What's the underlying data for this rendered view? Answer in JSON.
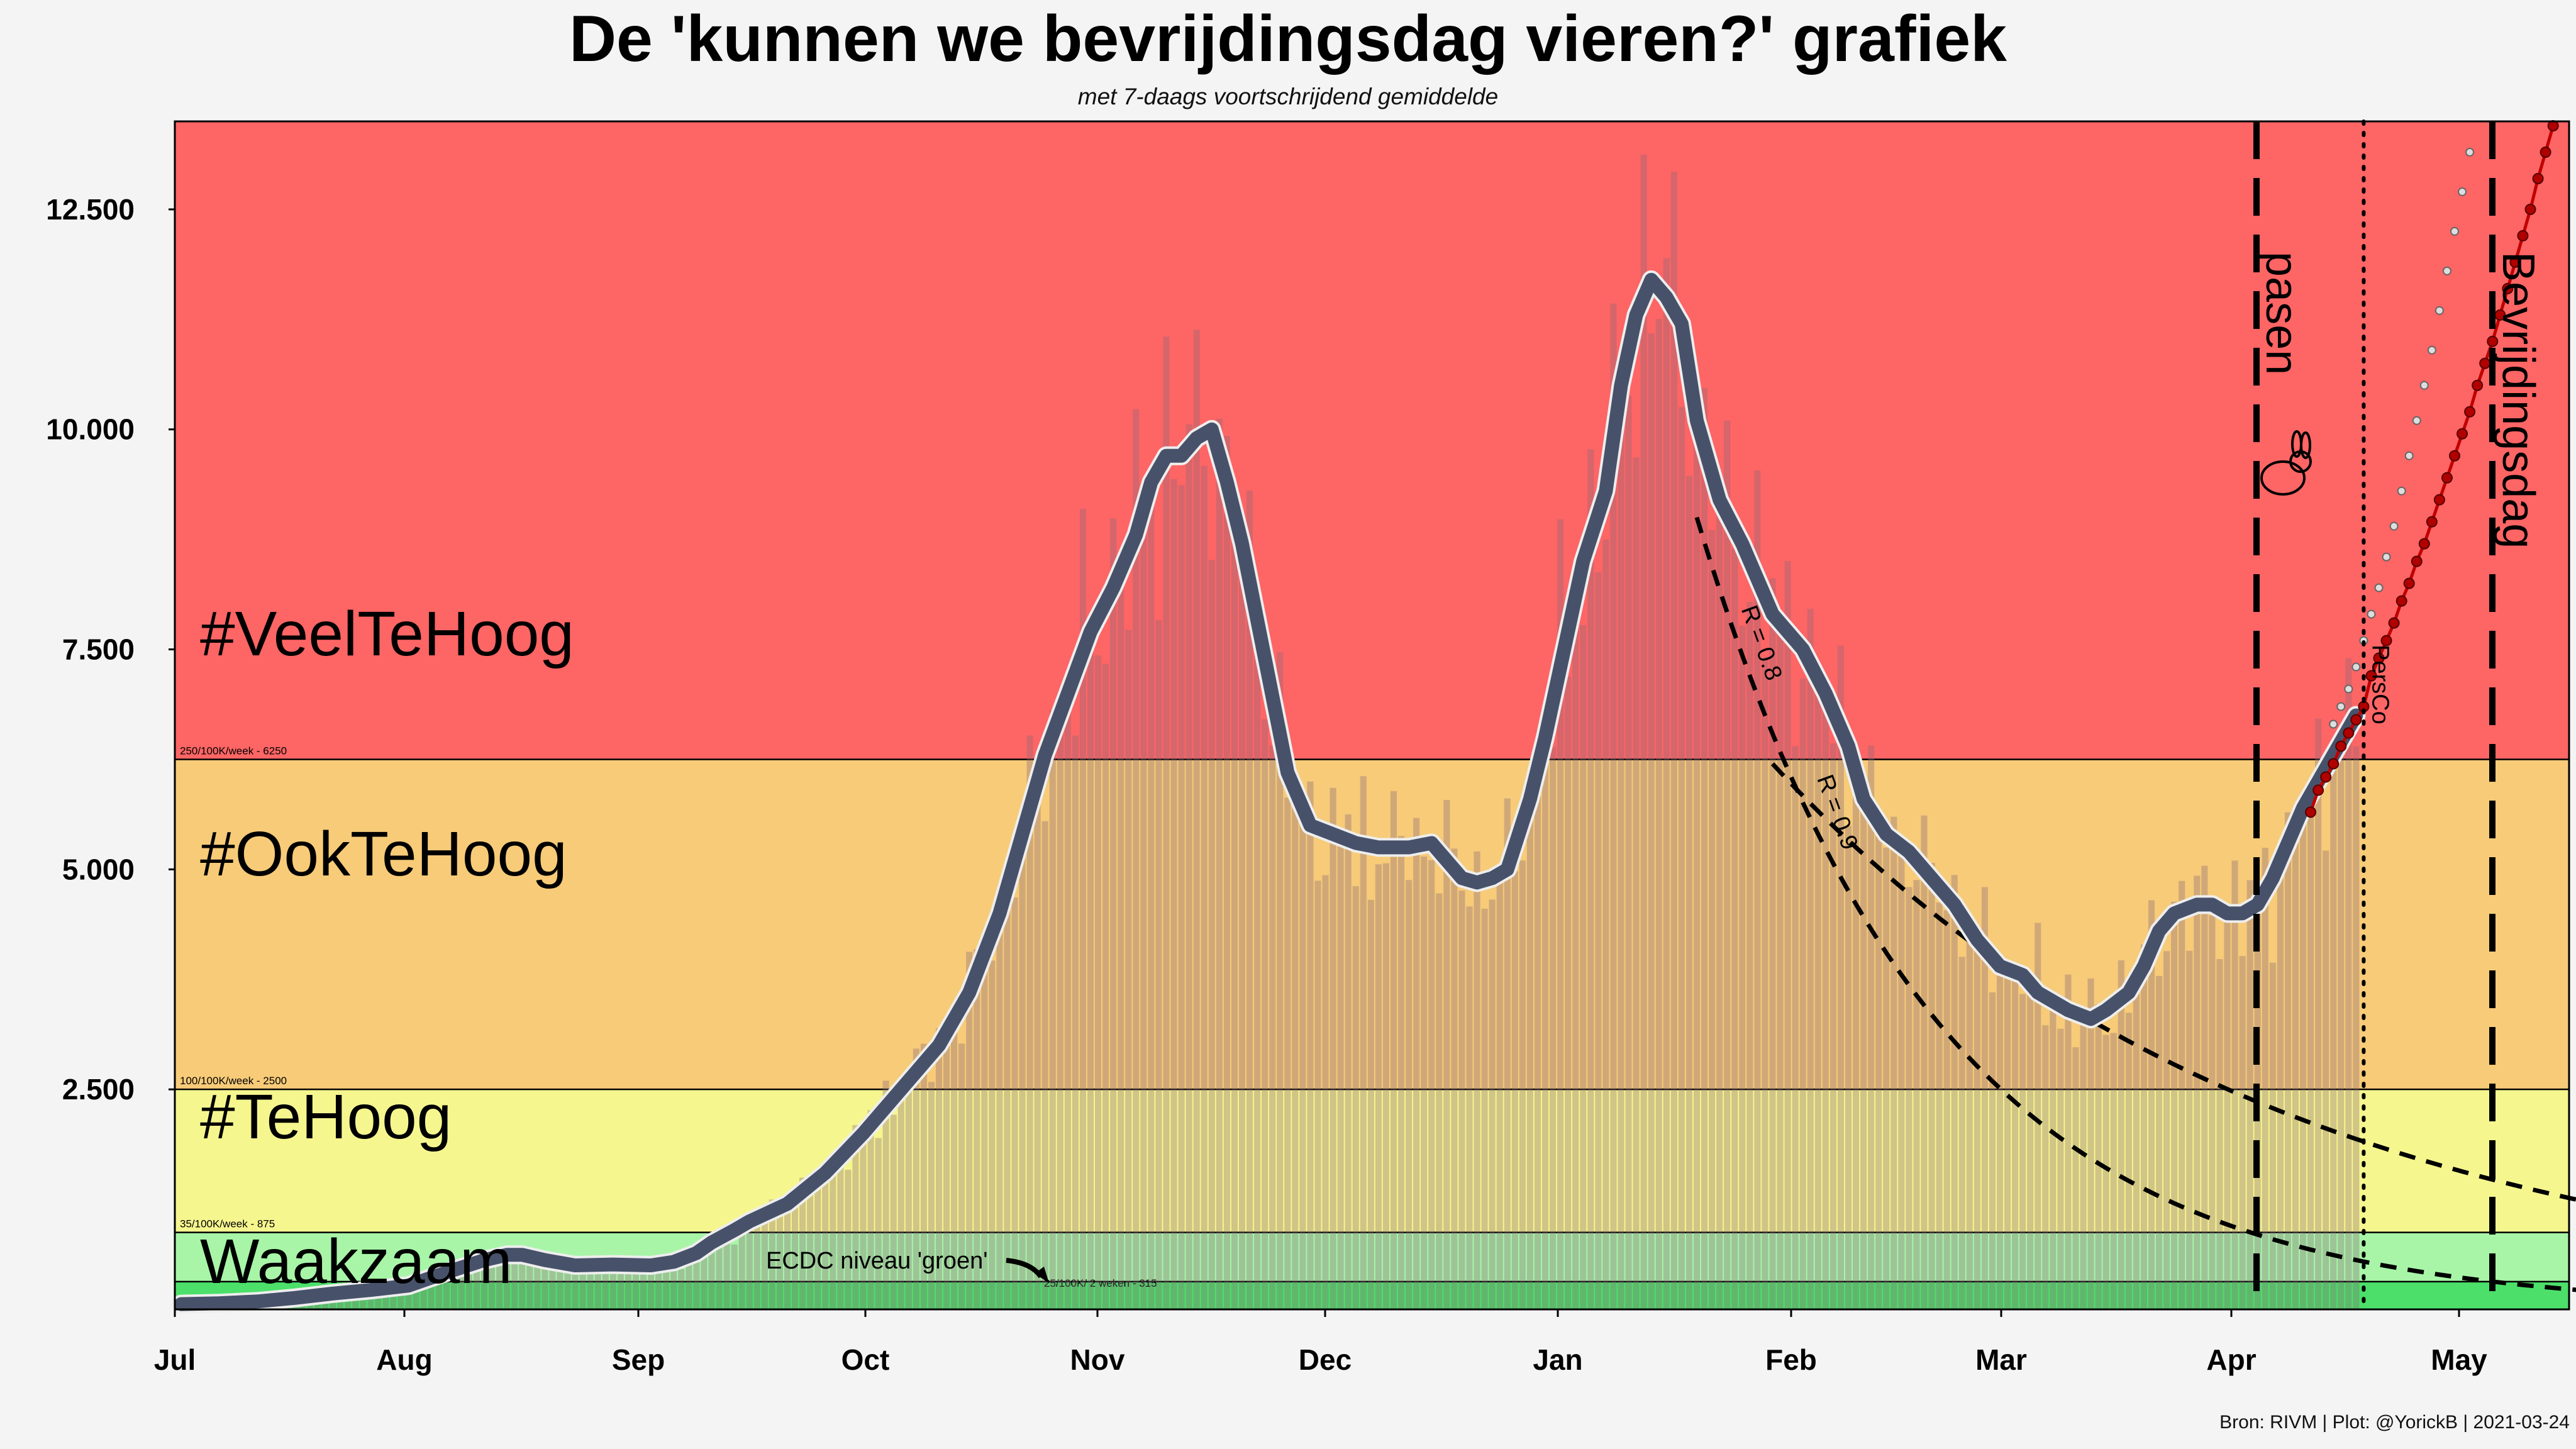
{
  "title": "De 'kunnen we bevrijdingsdag vieren?' grafiek",
  "subtitle": "met 7-daags voortschrijdend gemiddelde",
  "source": "Bron: RIVM | Plot: @YorickB  |  2021-03-24",
  "chart_data": {
    "type": "bar",
    "ylim": [
      0,
      13500
    ],
    "y_ticks": [
      {
        "value": 2500,
        "label": "2.500"
      },
      {
        "value": 5000,
        "label": "5.000"
      },
      {
        "value": 7500,
        "label": "7.500"
      },
      {
        "value": 10000,
        "label": "10.000"
      },
      {
        "value": 12500,
        "label": "12.500"
      }
    ],
    "x_ticks": [
      {
        "day": 0,
        "label": "Jul"
      },
      {
        "day": 31,
        "label": "Aug"
      },
      {
        "day": 62,
        "label": "Sep"
      },
      {
        "day": 92,
        "label": "Oct"
      },
      {
        "day": 123,
        "label": "Nov"
      },
      {
        "day": 153,
        "label": "Dec"
      },
      {
        "day": 184,
        "label": "Jan"
      },
      {
        "day": 215,
        "label": "Feb"
      },
      {
        "day": 243,
        "label": "Mar"
      },
      {
        "day": 274,
        "label": "Apr"
      },
      {
        "day": 304,
        "label": "May"
      }
    ],
    "x_range_days": [
      0,
      318
    ],
    "zones": [
      {
        "from": 0,
        "to": 315,
        "color": "#4ce06a",
        "label": "",
        "threshold_label": "25/100K/ 2 weken - 315"
      },
      {
        "from": 315,
        "to": 875,
        "color": "#a8f5a8",
        "label": "Waakzaam",
        "threshold_label": "35/100K/week - 875"
      },
      {
        "from": 875,
        "to": 2500,
        "color": "#f6f68f",
        "label": "#TeHoog",
        "threshold_label": "100/100K/week - 2500"
      },
      {
        "from": 2500,
        "to": 6250,
        "color": "#f7cb78",
        "label": "#OokTeHoog",
        "threshold_label": "250/100K/week - 6250"
      },
      {
        "from": 6250,
        "to": 13500,
        "color": "#fe6565",
        "label": "#VeelTeHoog",
        "threshold_label": ""
      }
    ],
    "avg_keypoints": [
      [
        0,
        60
      ],
      [
        5,
        70
      ],
      [
        10,
        90
      ],
      [
        15,
        130
      ],
      [
        20,
        180
      ],
      [
        25,
        220
      ],
      [
        30,
        270
      ],
      [
        35,
        420
      ],
      [
        40,
        560
      ],
      [
        43,
        620
      ],
      [
        45,
        620
      ],
      [
        48,
        560
      ],
      [
        52,
        500
      ],
      [
        57,
        510
      ],
      [
        62,
        500
      ],
      [
        65,
        540
      ],
      [
        68,
        640
      ],
      [
        70,
        760
      ],
      [
        73,
        900
      ],
      [
        75,
        1000
      ],
      [
        80,
        1200
      ],
      [
        85,
        1550
      ],
      [
        90,
        2000
      ],
      [
        95,
        2500
      ],
      [
        100,
        3000
      ],
      [
        104,
        3600
      ],
      [
        108,
        4500
      ],
      [
        111,
        5400
      ],
      [
        114,
        6300
      ],
      [
        117,
        7000
      ],
      [
        120,
        7700
      ],
      [
        123,
        8200
      ],
      [
        126,
        8800
      ],
      [
        128,
        9400
      ],
      [
        130,
        9700
      ],
      [
        132,
        9700
      ],
      [
        134,
        9900
      ],
      [
        136,
        10000
      ],
      [
        138,
        9400
      ],
      [
        140,
        8700
      ],
      [
        143,
        7400
      ],
      [
        146,
        6100
      ],
      [
        149,
        5500
      ],
      [
        152,
        5400
      ],
      [
        155,
        5300
      ],
      [
        158,
        5250
      ],
      [
        162,
        5250
      ],
      [
        165,
        5300
      ],
      [
        167,
        5100
      ],
      [
        169,
        4900
      ],
      [
        171,
        4850
      ],
      [
        173,
        4900
      ],
      [
        175,
        5000
      ],
      [
        178,
        5800
      ],
      [
        180,
        6500
      ],
      [
        183,
        7700
      ],
      [
        185,
        8500
      ],
      [
        188,
        9300
      ],
      [
        190,
        10500
      ],
      [
        192,
        11300
      ],
      [
        194,
        11700
      ],
      [
        196,
        11500
      ],
      [
        198,
        11200
      ],
      [
        200,
        10100
      ],
      [
        203,
        9200
      ],
      [
        206,
        8700
      ],
      [
        208,
        8300
      ],
      [
        210,
        7900
      ],
      [
        212,
        7700
      ],
      [
        214,
        7500
      ],
      [
        217,
        7000
      ],
      [
        220,
        6400
      ],
      [
        222,
        5800
      ],
      [
        225,
        5400
      ],
      [
        228,
        5200
      ],
      [
        231,
        4900
      ],
      [
        234,
        4600
      ],
      [
        237,
        4200
      ],
      [
        240,
        3900
      ],
      [
        243,
        3800
      ],
      [
        245,
        3600
      ],
      [
        247,
        3500
      ],
      [
        249,
        3400
      ],
      [
        252,
        3300
      ],
      [
        254,
        3400
      ],
      [
        257,
        3600
      ],
      [
        259,
        3900
      ],
      [
        261,
        4300
      ],
      [
        263,
        4500
      ],
      [
        266,
        4600
      ],
      [
        268,
        4600
      ],
      [
        270,
        4500
      ],
      [
        272,
        4500
      ],
      [
        274,
        4600
      ],
      [
        276,
        4900
      ],
      [
        278,
        5300
      ],
      [
        280,
        5700
      ],
      [
        282,
        6000
      ],
      [
        284,
        6300
      ],
      [
        286,
        6600
      ],
      [
        287,
        6750
      ]
    ],
    "daily_bar_count": 288,
    "daily_bar_color": "#8a6a78",
    "projection_red_points": [
      [
        281,
        5650
      ],
      [
        282,
        5900
      ],
      [
        283,
        6050
      ],
      [
        284,
        6200
      ],
      [
        285,
        6400
      ],
      [
        286,
        6550
      ],
      [
        287,
        6700
      ],
      [
        288,
        6850
      ],
      [
        289,
        7200
      ],
      [
        290,
        7400
      ],
      [
        291,
        7600
      ],
      [
        292,
        7800
      ],
      [
        293,
        8050
      ],
      [
        294,
        8250
      ],
      [
        295,
        8500
      ],
      [
        296,
        8700
      ],
      [
        297,
        8950
      ],
      [
        298,
        9200
      ],
      [
        299,
        9450
      ],
      [
        300,
        9700
      ],
      [
        301,
        9950
      ],
      [
        302,
        10200
      ],
      [
        303,
        10500
      ],
      [
        304,
        10750
      ],
      [
        305,
        11000
      ],
      [
        306,
        11300
      ],
      [
        307,
        11600
      ],
      [
        308,
        11900
      ],
      [
        309,
        12200
      ],
      [
        310,
        12500
      ],
      [
        311,
        12850
      ],
      [
        312,
        13150
      ],
      [
        313,
        13450
      ]
    ],
    "projection_grey_points": [
      [
        284,
        6650
      ],
      [
        285,
        6850
      ],
      [
        286,
        7050
      ],
      [
        287,
        7300
      ],
      [
        288,
        7600
      ],
      [
        289,
        7900
      ],
      [
        290,
        8200
      ],
      [
        291,
        8550
      ],
      [
        292,
        8900
      ],
      [
        293,
        9300
      ],
      [
        294,
        9700
      ],
      [
        295,
        10100
      ],
      [
        296,
        10500
      ],
      [
        297,
        10900
      ],
      [
        298,
        11350
      ],
      [
        299,
        11800
      ],
      [
        300,
        12250
      ],
      [
        301,
        12700
      ],
      [
        302,
        13150
      ]
    ],
    "r_curves": [
      {
        "label": "R = 0.8",
        "start_day": 200,
        "start_value": 9000,
        "daily_factor": 0.9686
      },
      {
        "label": "R = 0.9",
        "start_day": 210,
        "start_value": 6200,
        "daily_factor": 0.985
      }
    ],
    "vertical_lines": [
      {
        "day": 288,
        "label": "PersCo",
        "style": "dotted"
      },
      {
        "day": 302,
        "label": "pasen",
        "style": "dashed"
      },
      {
        "day": 333,
        "label": "Bevrijdingsdag",
        "style": "dashed"
      }
    ],
    "annotations": [
      {
        "text": "ECDC niveau 'groen'"
      }
    ]
  }
}
